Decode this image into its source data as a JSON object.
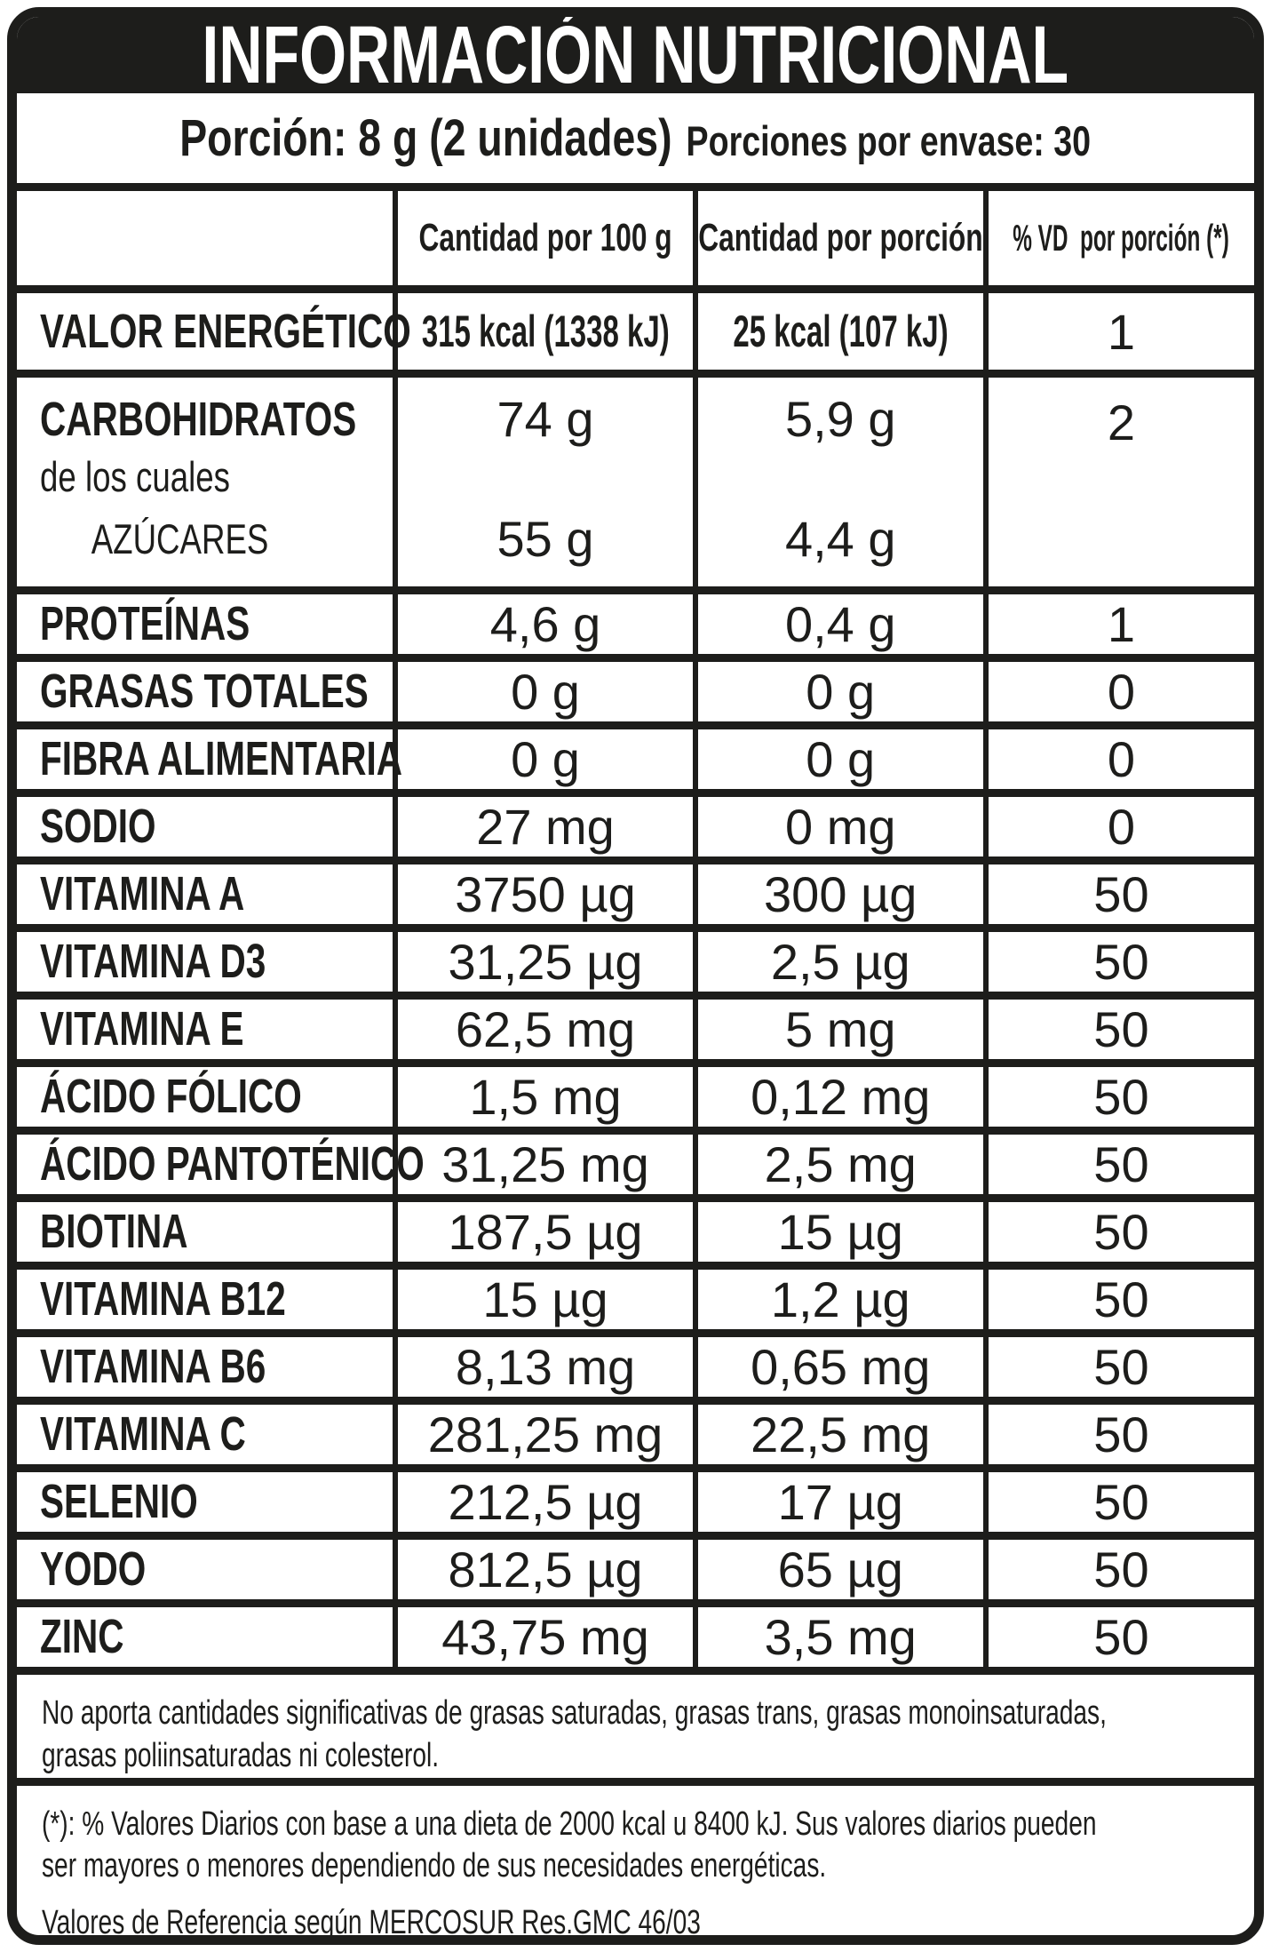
{
  "colors": {
    "ink": "#1d1d1b",
    "paper": "#ffffff",
    "title_text": "#ffffff"
  },
  "title": "INFORMACIÓN NUTRICIONAL",
  "portion": {
    "serving": "Porción: 8 g (2 unidades)",
    "per_container": "Porciones por envase: 30"
  },
  "table": {
    "header": {
      "per100": "Cantidad por 100 g",
      "per_portion": "Cantidad por porción",
      "vd": "% VD  por porción (*)"
    },
    "energy": {
      "label": "VALOR ENERGÉTICO",
      "per100": "315 kcal (1338 kJ)",
      "per_portion": "25 kcal (107 kJ)",
      "vd": "1"
    },
    "carbs": {
      "label": "CARBOHIDRATOS",
      "sublabel": "de los cuales",
      "sugars_label": "AZÚCARES",
      "per100": "74 g",
      "per_portion": "5,9 g",
      "vd": "2",
      "sugars_per100": "55 g",
      "sugars_per_portion": "4,4 g"
    },
    "rows": [
      {
        "label": "PROTEÍNAS",
        "per100": "4,6 g",
        "per_portion": "0,4 g",
        "vd": "1"
      },
      {
        "label": "GRASAS TOTALES",
        "per100": "0 g",
        "per_portion": "0 g",
        "vd": "0"
      },
      {
        "label": "FIBRA ALIMENTARIA",
        "per100": "0 g",
        "per_portion": "0 g",
        "vd": "0"
      },
      {
        "label": "SODIO",
        "per100": "27 mg",
        "per_portion": "0 mg",
        "vd": "0"
      },
      {
        "label": "VITAMINA A",
        "per100": "3750 µg",
        "per_portion": "300 µg",
        "vd": "50"
      },
      {
        "label": "VITAMINA D3",
        "per100": "31,25 µg",
        "per_portion": "2,5 µg",
        "vd": "50"
      },
      {
        "label": "VITAMINA E",
        "per100": "62,5 mg",
        "per_portion": "5 mg",
        "vd": "50"
      },
      {
        "label": "ÁCIDO FÓLICO",
        "per100": "1,5 mg",
        "per_portion": "0,12 mg",
        "vd": "50"
      },
      {
        "label": "ÁCIDO PANTOTÉNICO",
        "per100": "31,25 mg",
        "per_portion": "2,5 mg",
        "vd": "50"
      },
      {
        "label": "BIOTINA",
        "per100": "187,5 µg",
        "per_portion": "15 µg",
        "vd": "50"
      },
      {
        "label": "VITAMINA B12",
        "per100": "15 µg",
        "per_portion": "1,2 µg",
        "vd": "50"
      },
      {
        "label": "VITAMINA B6",
        "per100": "8,13 mg",
        "per_portion": "0,65 mg",
        "vd": "50"
      },
      {
        "label": "VITAMINA C",
        "per100": "281,25 mg",
        "per_portion": "22,5 mg",
        "vd": "50"
      },
      {
        "label": "SELENIO",
        "per100": "212,5 µg",
        "per_portion": "17 µg",
        "vd": "50"
      },
      {
        "label": "YODO",
        "per100": "812,5 µg",
        "per_portion": "65 µg",
        "vd": "50"
      },
      {
        "label": "ZINC",
        "per100": "43,75 mg",
        "per_portion": "3,5 mg",
        "vd": "50"
      }
    ]
  },
  "notes": {
    "no_significant": "No aporta cantidades significativas de grasas saturadas, grasas trans, grasas monoinsaturadas,\ngrasas poliinsaturadas ni colesterol.",
    "daily_values": "(*): % Valores Diarios con base a una dieta de 2000 kcal u 8400 kJ. Sus valores diarios pueden\nser mayores o menores dependiendo de sus necesidades energéticas.",
    "reference": "Valores de Referencia según MERCOSUR Res.GMC 46/03"
  }
}
